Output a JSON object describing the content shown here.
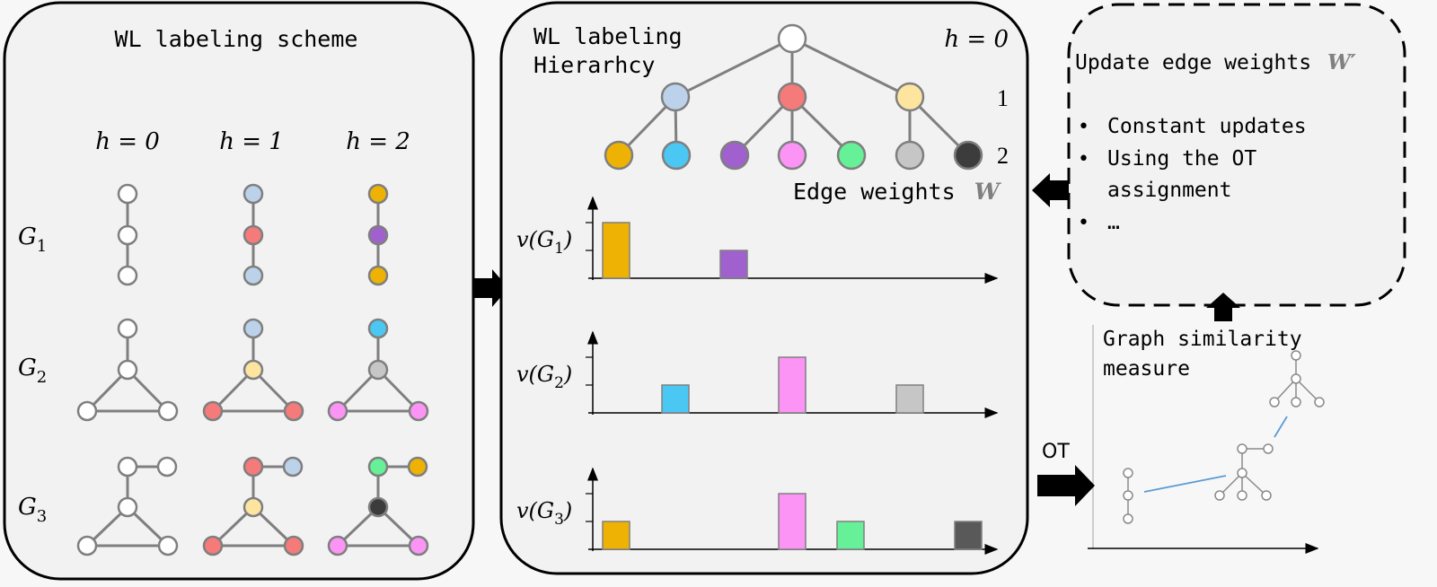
{
  "colors": {
    "white": "#ffffff",
    "lightblue": "#bcd2ea",
    "red": "#f57a7a",
    "yellow": "#fde5a0",
    "orange": "#eeb204",
    "cyan": "#4ac8f3",
    "purple": "#a061cf",
    "pink": "#fc94f6",
    "green": "#66f097",
    "gray": "#c6c6c6",
    "dark": "#3c3c3c",
    "bar_dark": "#595959"
  },
  "left_panel": {
    "title": "WL labeling scheme",
    "column_headers": [
      "h = 0",
      "h = 1",
      "h = 2"
    ],
    "row_labels": [
      {
        "base": "G",
        "sub": "1"
      },
      {
        "base": "G",
        "sub": "2"
      },
      {
        "base": "G",
        "sub": "3"
      }
    ],
    "graphs": [
      {
        "row": "G1",
        "shape": "path",
        "colors": [
          [
            "white",
            "white",
            "white"
          ],
          [
            "lightblue",
            "red",
            "lightblue"
          ],
          [
            "orange",
            "purple",
            "orange"
          ]
        ]
      },
      {
        "row": "G2",
        "shape": "triangle-with-tail",
        "colors": [
          [
            "white",
            "white",
            "white",
            "white"
          ],
          [
            "lightblue",
            "yellow",
            "red",
            "red"
          ],
          [
            "cyan",
            "gray",
            "pink",
            "pink"
          ]
        ]
      },
      {
        "row": "G3",
        "shape": "triangle-with-branch",
        "colors": [
          [
            "white",
            "white",
            "white",
            "white",
            "white"
          ],
          [
            "red",
            "lightblue",
            "yellow",
            "red",
            "red"
          ],
          [
            "green",
            "orange",
            "dark",
            "pink",
            "pink"
          ]
        ]
      }
    ]
  },
  "middle_panel": {
    "title_line1": "WL labeling",
    "title_line2": "Hierarhcy",
    "level_labels": [
      "h = 0",
      "1",
      "2"
    ],
    "tree": {
      "root": "white",
      "level1": [
        "lightblue",
        "red",
        "yellow"
      ],
      "level2": [
        "orange",
        "cyan",
        "purple",
        "pink",
        "green",
        "gray",
        "dark"
      ]
    },
    "edge_weights_label": "Edge weights",
    "edge_weights_symbol": "W"
  },
  "chart_data": [
    {
      "type": "bar",
      "ylabel": "v(G1)",
      "categories": [
        "orange",
        "cyan",
        "purple",
        "pink",
        "green",
        "gray",
        "dark"
      ],
      "values": [
        2,
        0,
        1,
        0,
        0,
        0,
        0
      ]
    },
    {
      "type": "bar",
      "ylabel": "v(G2)",
      "categories": [
        "orange",
        "cyan",
        "purple",
        "pink",
        "green",
        "gray",
        "dark"
      ],
      "values": [
        0,
        1,
        0,
        2,
        0,
        1,
        0
      ]
    },
    {
      "type": "bar",
      "ylabel": "v(G3)",
      "categories": [
        "orange",
        "cyan",
        "purple",
        "pink",
        "green",
        "gray",
        "dark"
      ],
      "values": [
        1,
        0,
        0,
        2,
        1,
        0,
        1
      ]
    }
  ],
  "right_panel": {
    "title": "Update edge weights",
    "title_symbol": "W′",
    "bullets": [
      "Constant updates",
      "Using the OT",
      "assignment",
      "…"
    ],
    "similarity_label_line1": "Graph similarity",
    "similarity_label_line2": "measure",
    "ot_label": "OT"
  }
}
